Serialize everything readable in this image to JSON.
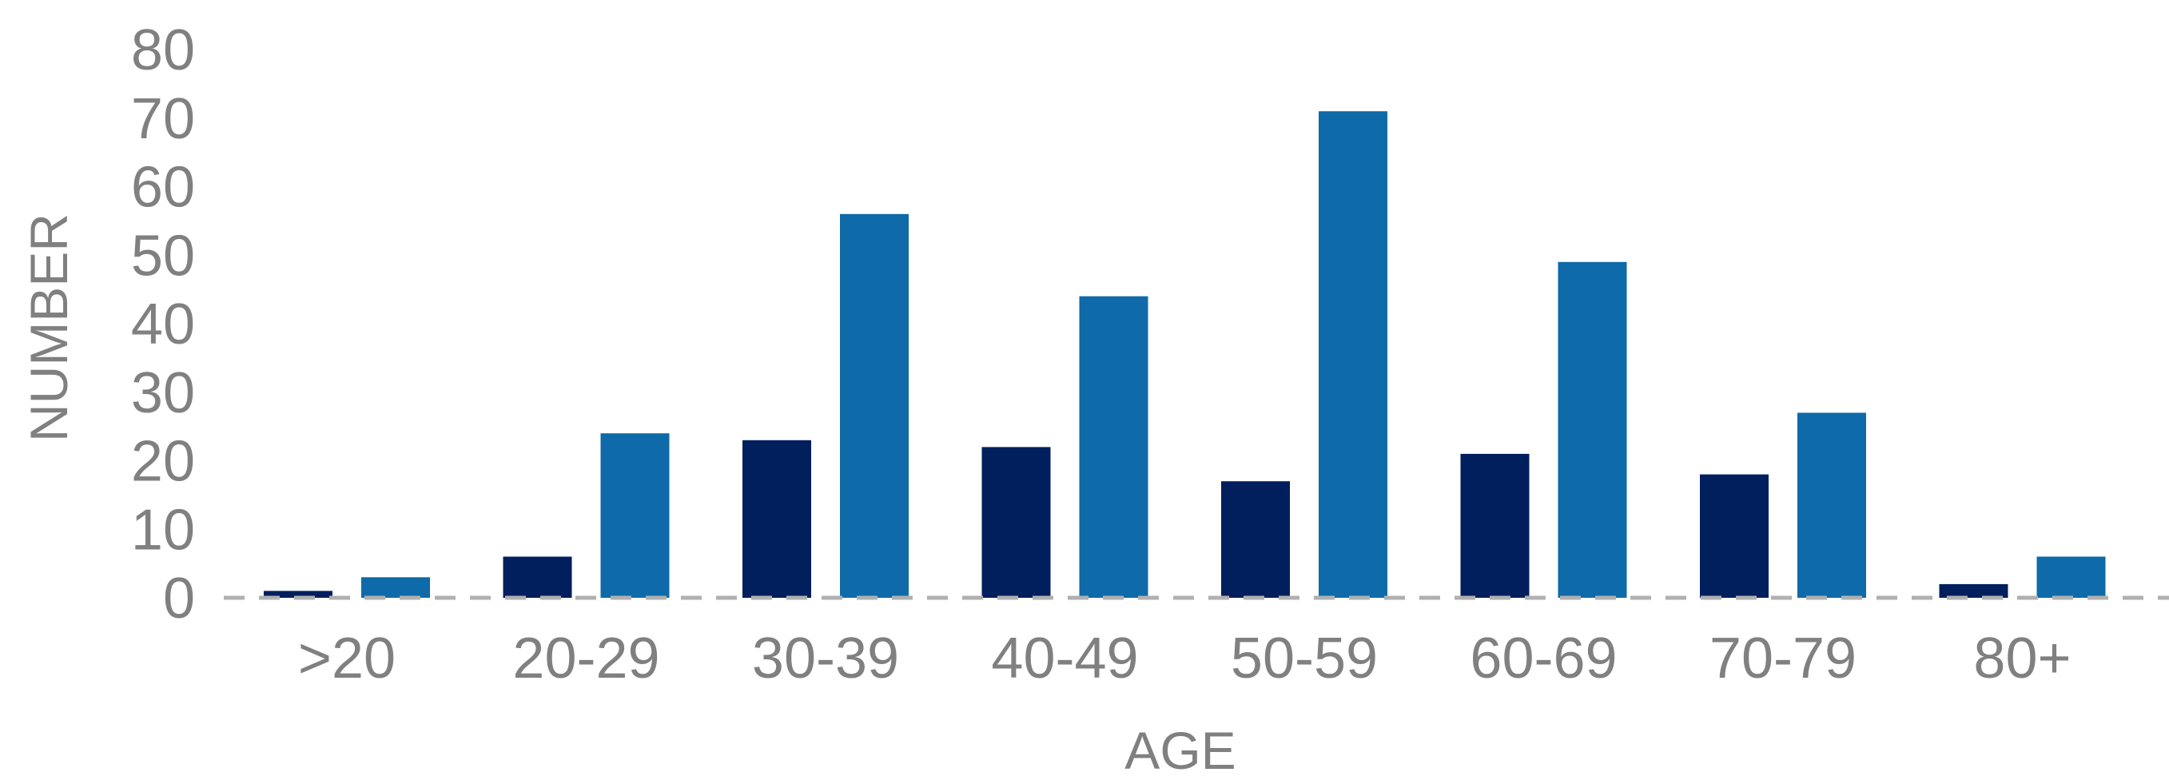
{
  "chart_data": {
    "type": "bar",
    "categories": [
      ">20",
      "20-29",
      "30-39",
      "40-49",
      "50-59",
      "60-69",
      "70-79",
      "80+"
    ],
    "series": [
      {
        "values": [
          1,
          6,
          23,
          22,
          17,
          21,
          18,
          2
        ],
        "color": "#001f5c"
      },
      {
        "values": [
          3,
          24,
          56,
          44,
          71,
          49,
          27,
          6
        ],
        "color": "#0e6aa8"
      }
    ],
    "title": "",
    "xlabel": "AGE",
    "ylabel": "NUMBER",
    "ylim": [
      0,
      80
    ],
    "yticks": [
      0,
      10,
      20,
      30,
      40,
      50,
      60,
      70,
      80
    ],
    "grid": false,
    "legend": "none",
    "baseline_style": "dashed"
  },
  "colors": {
    "text": "#808080",
    "baseline": "#b0b0b0"
  }
}
